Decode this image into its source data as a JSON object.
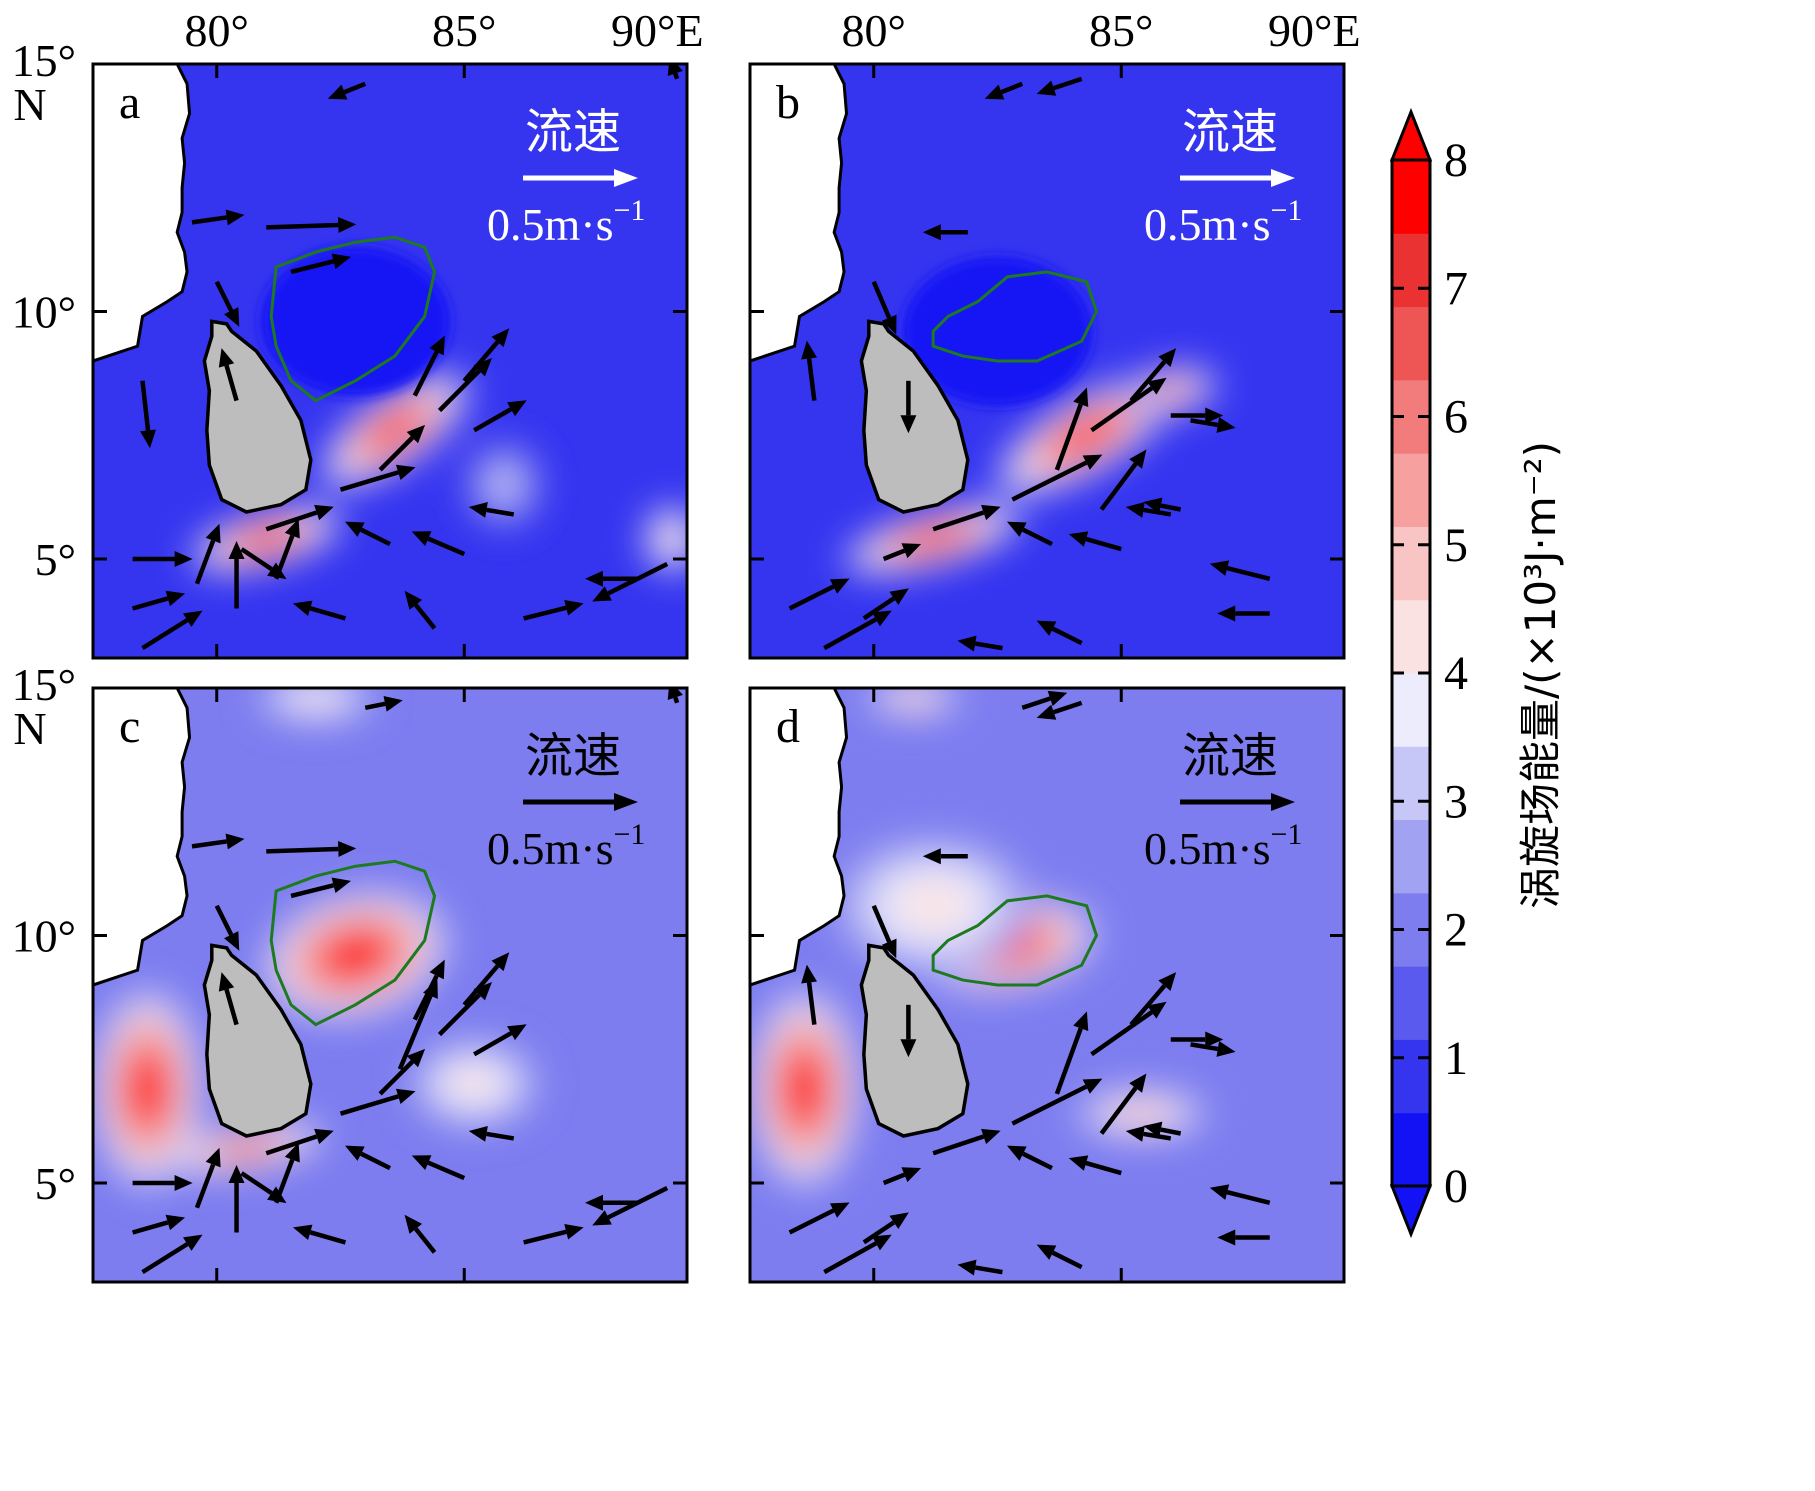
{
  "chart_data": {
    "type": "map-filled-contour",
    "lon_ticks": [
      "80°",
      "85°",
      "90°E"
    ],
    "lat_ticks": [
      {
        "label": "15°",
        "sub": "N"
      },
      {
        "label": "10°",
        "sub": ""
      },
      {
        "label": "5°",
        "sub": ""
      }
    ],
    "lon_range": [
      77.5,
      89.5
    ],
    "lat_range": [
      3.0,
      15.0
    ],
    "colorbar": {
      "title": "涡旋场能量/(×10³J·m⁻²)",
      "ticks": [
        "0",
        "1",
        "2",
        "3",
        "4",
        "5",
        "6",
        "7",
        "8"
      ],
      "range": [
        0,
        8
      ],
      "extend": "both",
      "colors": [
        "#1212f5",
        "#3535f0",
        "#5a5aee",
        "#7d7df0",
        "#a2a2f2",
        "#c6c6f7",
        "#ececfc",
        "#fbe2e2",
        "#f9c4c4",
        "#f6a0a0",
        "#f27b7b",
        "#ee5656",
        "#ea3232",
        "#ff0000"
      ]
    },
    "reference_arrow": {
      "label": "流速",
      "value": "0.5m·s",
      "exponent": "−1"
    },
    "panels": [
      {
        "letter": "a",
        "ref_color": "#ffffff",
        "field_level": 0.6,
        "hotspots": [
          {
            "lon": 83.6,
            "lat": 7.6,
            "rx": 1.8,
            "ry": 0.7,
            "rot": -35,
            "level": 8
          },
          {
            "lon": 81.0,
            "lat": 5.4,
            "rx": 1.6,
            "ry": 0.55,
            "rot": -15,
            "level": 8
          },
          {
            "lon": 89.2,
            "lat": 5.4,
            "rx": 0.6,
            "ry": 0.7,
            "rot": 0,
            "level": 5
          },
          {
            "lon": 85.8,
            "lat": 6.5,
            "rx": 0.8,
            "ry": 0.9,
            "rot": 0,
            "level": 3
          }
        ],
        "cold_core": {
          "lon": 82.8,
          "lat": 9.8
        },
        "vectors": [
          {
            "lon": 79.5,
            "lat": 11.8,
            "u": 0.35,
            "v": 0.05
          },
          {
            "lon": 81.0,
            "lat": 11.7,
            "u": 0.6,
            "v": 0.02
          },
          {
            "lon": 81.5,
            "lat": 10.8,
            "u": 0.4,
            "v": 0.1
          },
          {
            "lon": 80.0,
            "lat": 10.6,
            "u": 0.15,
            "v": -0.3
          },
          {
            "lon": 84.0,
            "lat": 8.3,
            "u": 0.2,
            "v": 0.4
          },
          {
            "lon": 84.5,
            "lat": 8.0,
            "u": 0.35,
            "v": 0.35
          },
          {
            "lon": 85.0,
            "lat": 8.6,
            "u": 0.3,
            "v": 0.35
          },
          {
            "lon": 85.2,
            "lat": 7.6,
            "u": 0.35,
            "v": 0.2
          },
          {
            "lon": 82.5,
            "lat": 6.4,
            "u": 0.5,
            "v": 0.15
          },
          {
            "lon": 83.3,
            "lat": 6.8,
            "u": 0.3,
            "v": 0.3
          },
          {
            "lon": 81.0,
            "lat": 5.6,
            "u": 0.45,
            "v": 0.15
          },
          {
            "lon": 80.5,
            "lat": 5.2,
            "u": 0.3,
            "v": -0.2
          },
          {
            "lon": 78.3,
            "lat": 5.0,
            "u": 0.4,
            "v": 0.0
          },
          {
            "lon": 79.6,
            "lat": 4.5,
            "u": 0.15,
            "v": 0.4
          },
          {
            "lon": 80.4,
            "lat": 4.0,
            "u": 0.0,
            "v": 0.45
          },
          {
            "lon": 81.2,
            "lat": 4.6,
            "u": 0.15,
            "v": 0.4
          },
          {
            "lon": 78.3,
            "lat": 4.0,
            "u": 0.35,
            "v": 0.1
          },
          {
            "lon": 78.5,
            "lat": 3.2,
            "u": 0.4,
            "v": 0.25
          },
          {
            "lon": 83.5,
            "lat": 5.3,
            "u": -0.3,
            "v": 0.15
          },
          {
            "lon": 85.0,
            "lat": 5.1,
            "u": -0.35,
            "v": 0.15
          },
          {
            "lon": 86.0,
            "lat": 5.9,
            "u": -0.3,
            "v": 0.05
          },
          {
            "lon": 84.4,
            "lat": 3.6,
            "u": -0.2,
            "v": 0.25
          },
          {
            "lon": 82.6,
            "lat": 3.8,
            "u": -0.35,
            "v": 0.1
          },
          {
            "lon": 86.2,
            "lat": 3.8,
            "u": 0.4,
            "v": 0.1
          },
          {
            "lon": 88.5,
            "lat": 4.6,
            "u": -0.35,
            "v": 0.0
          },
          {
            "lon": 89.1,
            "lat": 4.9,
            "u": -0.5,
            "v": -0.25
          },
          {
            "lon": 80.4,
            "lat": 8.2,
            "u": -0.1,
            "v": 0.35
          },
          {
            "lon": 78.5,
            "lat": 8.6,
            "u": 0.05,
            "v": -0.45
          },
          {
            "lon": 83.0,
            "lat": 14.6,
            "u": -0.25,
            "v": -0.1
          },
          {
            "lon": 89.3,
            "lat": 14.7,
            "u": -0.05,
            "v": 0.15
          }
        ]
      },
      {
        "letter": "b",
        "ref_color": "#ffffff",
        "field_level": 0.5,
        "hotspots": [
          {
            "lon": 84.3,
            "lat": 7.5,
            "rx": 2.1,
            "ry": 0.75,
            "rot": -30,
            "level": 8
          },
          {
            "lon": 81.2,
            "lat": 5.4,
            "rx": 1.9,
            "ry": 0.55,
            "rot": -15,
            "level": 8
          },
          {
            "lon": 86.0,
            "lat": 8.4,
            "rx": 1.0,
            "ry": 0.5,
            "rot": -10,
            "level": 6
          }
        ],
        "cold_core": {
          "lon": 82.5,
          "lat": 9.6
        },
        "vectors": [
          {
            "lon": 81.9,
            "lat": 11.6,
            "u": -0.3,
            "v": 0.0
          },
          {
            "lon": 80.0,
            "lat": 10.6,
            "u": 0.15,
            "v": -0.35
          },
          {
            "lon": 83.7,
            "lat": 6.8,
            "u": 0.2,
            "v": 0.55
          },
          {
            "lon": 84.4,
            "lat": 7.6,
            "u": 0.5,
            "v": 0.35
          },
          {
            "lon": 85.2,
            "lat": 8.2,
            "u": 0.3,
            "v": 0.35
          },
          {
            "lon": 86.0,
            "lat": 7.9,
            "u": 0.35,
            "v": 0.0
          },
          {
            "lon": 86.4,
            "lat": 7.8,
            "u": 0.3,
            "v": -0.05
          },
          {
            "lon": 82.8,
            "lat": 6.2,
            "u": 0.6,
            "v": 0.3
          },
          {
            "lon": 84.6,
            "lat": 6.0,
            "u": 0.3,
            "v": 0.4
          },
          {
            "lon": 81.2,
            "lat": 5.6,
            "u": 0.45,
            "v": 0.15
          },
          {
            "lon": 79.0,
            "lat": 3.2,
            "u": 0.45,
            "v": 0.25
          },
          {
            "lon": 78.3,
            "lat": 4.0,
            "u": 0.4,
            "v": 0.2
          },
          {
            "lon": 79.8,
            "lat": 3.8,
            "u": 0.3,
            "v": 0.2
          },
          {
            "lon": 80.2,
            "lat": 5.0,
            "u": 0.25,
            "v": 0.1
          },
          {
            "lon": 83.6,
            "lat": 5.3,
            "u": -0.3,
            "v": 0.15
          },
          {
            "lon": 85.0,
            "lat": 5.2,
            "u": -0.35,
            "v": 0.1
          },
          {
            "lon": 86.0,
            "lat": 5.9,
            "u": -0.3,
            "v": 0.05
          },
          {
            "lon": 86.2,
            "lat": 6.0,
            "u": -0.25,
            "v": 0.05
          },
          {
            "lon": 84.2,
            "lat": 3.3,
            "u": -0.3,
            "v": 0.15
          },
          {
            "lon": 82.6,
            "lat": 3.2,
            "u": -0.3,
            "v": 0.05
          },
          {
            "lon": 88.0,
            "lat": 4.6,
            "u": -0.4,
            "v": 0.1
          },
          {
            "lon": 88.0,
            "lat": 3.9,
            "u": -0.35,
            "v": 0.0
          },
          {
            "lon": 78.8,
            "lat": 8.2,
            "u": -0.05,
            "v": 0.4
          },
          {
            "lon": 83.0,
            "lat": 14.6,
            "u": -0.25,
            "v": -0.1
          },
          {
            "lon": 84.2,
            "lat": 14.7,
            "u": -0.3,
            "v": -0.1
          },
          {
            "lon": 80.7,
            "lat": 8.6,
            "u": 0.0,
            "v": -0.35
          }
        ]
      },
      {
        "letter": "c",
        "ref_color": "#000000",
        "field_level": 1.7,
        "hotspots": [
          {
            "lon": 82.8,
            "lat": 9.6,
            "rx": 1.9,
            "ry": 1.25,
            "rot": -15,
            "level": 8
          },
          {
            "lon": 78.6,
            "lat": 6.9,
            "rx": 1.1,
            "ry": 2.0,
            "rot": 0,
            "level": 8
          },
          {
            "lon": 80.6,
            "lat": 5.7,
            "rx": 1.6,
            "ry": 0.45,
            "rot": -10,
            "level": 7
          },
          {
            "lon": 85.2,
            "lat": 7.0,
            "rx": 1.3,
            "ry": 0.9,
            "rot": 0,
            "level": 4
          },
          {
            "lon": 82.0,
            "lat": 14.8,
            "rx": 1.2,
            "ry": 0.5,
            "rot": 0,
            "level": 4
          }
        ],
        "cold_core": null,
        "vectors": [
          {
            "lon": 79.5,
            "lat": 11.8,
            "u": 0.35,
            "v": 0.05
          },
          {
            "lon": 81.0,
            "lat": 11.7,
            "u": 0.6,
            "v": 0.02
          },
          {
            "lon": 81.5,
            "lat": 10.8,
            "u": 0.4,
            "v": 0.1
          },
          {
            "lon": 80.0,
            "lat": 10.6,
            "u": 0.15,
            "v": -0.3
          },
          {
            "lon": 84.0,
            "lat": 8.3,
            "u": 0.2,
            "v": 0.4
          },
          {
            "lon": 84.5,
            "lat": 8.0,
            "u": 0.35,
            "v": 0.35
          },
          {
            "lon": 85.0,
            "lat": 8.6,
            "u": 0.3,
            "v": 0.35
          },
          {
            "lon": 85.2,
            "lat": 7.6,
            "u": 0.35,
            "v": 0.2
          },
          {
            "lon": 82.5,
            "lat": 6.4,
            "u": 0.5,
            "v": 0.15
          },
          {
            "lon": 83.3,
            "lat": 6.8,
            "u": 0.3,
            "v": 0.3
          },
          {
            "lon": 81.0,
            "lat": 5.6,
            "u": 0.45,
            "v": 0.15
          },
          {
            "lon": 80.5,
            "lat": 5.2,
            "u": 0.3,
            "v": -0.2
          },
          {
            "lon": 78.3,
            "lat": 5.0,
            "u": 0.4,
            "v": 0.0
          },
          {
            "lon": 79.6,
            "lat": 4.5,
            "u": 0.15,
            "v": 0.4
          },
          {
            "lon": 80.4,
            "lat": 4.0,
            "u": 0.0,
            "v": 0.45
          },
          {
            "lon": 81.2,
            "lat": 4.6,
            "u": 0.15,
            "v": 0.4
          },
          {
            "lon": 78.3,
            "lat": 4.0,
            "u": 0.35,
            "v": 0.1
          },
          {
            "lon": 78.5,
            "lat": 3.2,
            "u": 0.4,
            "v": 0.25
          },
          {
            "lon": 83.5,
            "lat": 5.3,
            "u": -0.3,
            "v": 0.15
          },
          {
            "lon": 85.0,
            "lat": 5.1,
            "u": -0.35,
            "v": 0.15
          },
          {
            "lon": 86.0,
            "lat": 5.9,
            "u": -0.3,
            "v": 0.05
          },
          {
            "lon": 84.4,
            "lat": 3.6,
            "u": -0.2,
            "v": 0.25
          },
          {
            "lon": 82.6,
            "lat": 3.8,
            "u": -0.35,
            "v": 0.1
          },
          {
            "lon": 86.2,
            "lat": 3.8,
            "u": 0.4,
            "v": 0.1
          },
          {
            "lon": 88.5,
            "lat": 4.6,
            "u": -0.35,
            "v": 0.0
          },
          {
            "lon": 89.1,
            "lat": 4.9,
            "u": -0.5,
            "v": -0.25
          },
          {
            "lon": 80.4,
            "lat": 8.2,
            "u": -0.1,
            "v": 0.35
          },
          {
            "lon": 83.7,
            "lat": 7.3,
            "u": 0.25,
            "v": 0.6
          },
          {
            "lon": 83.0,
            "lat": 14.6,
            "u": 0.25,
            "v": 0.05
          },
          {
            "lon": 89.3,
            "lat": 14.7,
            "u": -0.05,
            "v": 0.15
          }
        ]
      },
      {
        "letter": "d",
        "ref_color": "#000000",
        "field_level": 1.7,
        "hotspots": [
          {
            "lon": 82.7,
            "lat": 9.8,
            "rx": 1.8,
            "ry": 0.9,
            "rot": -10,
            "level": 8
          },
          {
            "lon": 78.6,
            "lat": 6.9,
            "rx": 1.1,
            "ry": 2.0,
            "rot": 0,
            "level": 8
          },
          {
            "lon": 85.4,
            "lat": 6.4,
            "rx": 1.4,
            "ry": 0.55,
            "rot": 0,
            "level": 5
          },
          {
            "lon": 81.2,
            "lat": 10.6,
            "rx": 2.0,
            "ry": 1.4,
            "rot": 0,
            "level": 4
          },
          {
            "lon": 80.8,
            "lat": 14.8,
            "rx": 1.0,
            "ry": 0.4,
            "rot": 0,
            "level": 5
          }
        ],
        "cold_core": null,
        "vectors": [
          {
            "lon": 81.9,
            "lat": 11.6,
            "u": -0.3,
            "v": 0.0
          },
          {
            "lon": 80.0,
            "lat": 10.6,
            "u": 0.15,
            "v": -0.35
          },
          {
            "lon": 83.7,
            "lat": 6.8,
            "u": 0.2,
            "v": 0.55
          },
          {
            "lon": 84.4,
            "lat": 7.6,
            "u": 0.5,
            "v": 0.35
          },
          {
            "lon": 85.2,
            "lat": 8.2,
            "u": 0.3,
            "v": 0.35
          },
          {
            "lon": 86.0,
            "lat": 7.9,
            "u": 0.35,
            "v": 0.0
          },
          {
            "lon": 86.4,
            "lat": 7.8,
            "u": 0.3,
            "v": -0.05
          },
          {
            "lon": 82.8,
            "lat": 6.2,
            "u": 0.6,
            "v": 0.3
          },
          {
            "lon": 84.6,
            "lat": 6.0,
            "u": 0.3,
            "v": 0.4
          },
          {
            "lon": 81.2,
            "lat": 5.6,
            "u": 0.45,
            "v": 0.15
          },
          {
            "lon": 79.0,
            "lat": 3.2,
            "u": 0.45,
            "v": 0.25
          },
          {
            "lon": 78.3,
            "lat": 4.0,
            "u": 0.4,
            "v": 0.2
          },
          {
            "lon": 79.8,
            "lat": 3.8,
            "u": 0.3,
            "v": 0.2
          },
          {
            "lon": 80.2,
            "lat": 5.0,
            "u": 0.25,
            "v": 0.1
          },
          {
            "lon": 83.6,
            "lat": 5.3,
            "u": -0.3,
            "v": 0.15
          },
          {
            "lon": 85.0,
            "lat": 5.2,
            "u": -0.35,
            "v": 0.1
          },
          {
            "lon": 86.0,
            "lat": 5.9,
            "u": -0.3,
            "v": 0.05
          },
          {
            "lon": 86.2,
            "lat": 6.0,
            "u": -0.25,
            "v": 0.05
          },
          {
            "lon": 84.2,
            "lat": 3.3,
            "u": -0.3,
            "v": 0.15
          },
          {
            "lon": 82.6,
            "lat": 3.2,
            "u": -0.3,
            "v": 0.05
          },
          {
            "lon": 88.0,
            "lat": 4.6,
            "u": -0.4,
            "v": 0.1
          },
          {
            "lon": 88.0,
            "lat": 3.9,
            "u": -0.35,
            "v": 0.0
          },
          {
            "lon": 78.8,
            "lat": 8.2,
            "u": -0.05,
            "v": 0.4
          },
          {
            "lon": 83.0,
            "lat": 14.6,
            "u": 0.3,
            "v": 0.1
          },
          {
            "lon": 84.2,
            "lat": 14.7,
            "u": -0.3,
            "v": -0.1
          },
          {
            "lon": 80.7,
            "lat": 8.6,
            "u": 0.0,
            "v": -0.35
          }
        ]
      }
    ]
  }
}
